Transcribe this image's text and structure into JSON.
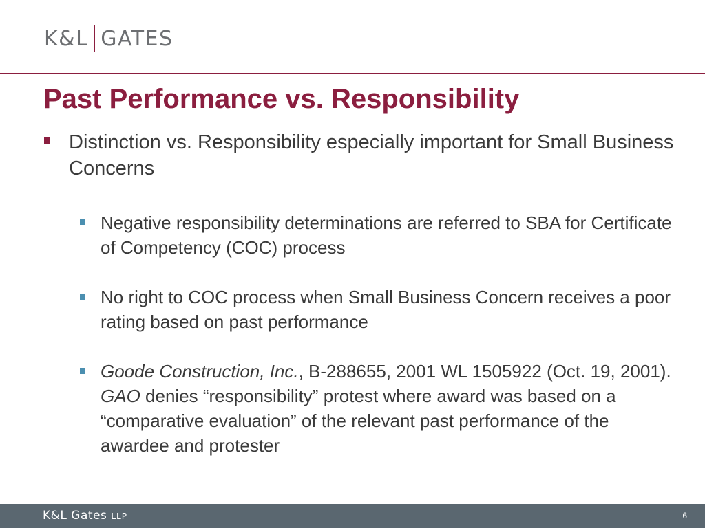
{
  "header": {
    "logo_left": "K&L",
    "logo_right": "GATES"
  },
  "slide": {
    "title": "Past Performance vs. Responsibility",
    "bullet1": {
      "text": "Distinction vs. Responsibility especially important for Small Business Concerns"
    },
    "sub_bullets": [
      {
        "text": "Negative responsibility determinations are referred to SBA for Certificate of Competency (COC) process"
      },
      {
        "text": "No right to COC process when Small Business Concern receives a poor rating based on past performance"
      },
      {
        "case_name": "Goode Construction, Inc.",
        "citation": ", B-288655, 2001 WL 1505922 (Oct. 19, 2001).  ",
        "agency": "GAO",
        "holding": " denies “responsibility” protest where award was based on a “comparative evaluation” of the relevant past performance of the awardee and  protester"
      }
    ]
  },
  "footer": {
    "brand": "K&L Gates",
    "brand_suffix": "LLP",
    "page_number": "6"
  },
  "colors": {
    "accent": "#8b1e3f",
    "sub_bullet": "#4b8fb0",
    "footer_bar": "#5a6770",
    "text": "#3a3a3a",
    "logo_gray": "#6d6f72"
  }
}
